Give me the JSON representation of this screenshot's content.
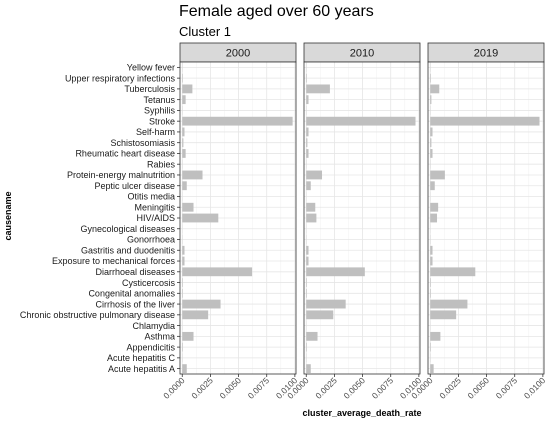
{
  "chart_data": {
    "type": "bar",
    "orientation": "horizontal",
    "title": "Female aged over 60 years",
    "subtitle": "Cluster 1",
    "xlabel": "cluster_average_death_rate",
    "ylabel": "causename",
    "xlim": [
      -0.0002,
      0.0101
    ],
    "xticks": [
      "0.0000",
      "0.0025",
      "0.0050",
      "0.0075",
      "0.0100"
    ],
    "xtick_values": [
      0,
      0.0025,
      0.005,
      0.0075,
      0.01
    ],
    "grid": true,
    "bar_color": "#bfbfbf",
    "categories": [
      "Yellow fever",
      "Upper respiratory infections",
      "Tuberculosis",
      "Tetanus",
      "Syphilis",
      "Stroke",
      "Self-harm",
      "Schistosomiasis",
      "Rheumatic heart disease",
      "Rabies",
      "Protein-energy malnutrition",
      "Peptic ulcer disease",
      "Otitis media",
      "Meningitis",
      "HIV/AIDS",
      "Gynecological diseases",
      "Gonorrhoea",
      "Gastritis and duodenitis",
      "Exposure to mechanical forces",
      "Diarrhoeal diseases",
      "Cysticercosis",
      "Congenital anomalies",
      "Cirrhosis of the liver",
      "Chronic obstructive pulmonary disease",
      "Chlamydia",
      "Asthma",
      "Appendicitis",
      "Acute hepatitis C",
      "Acute hepatitis A"
    ],
    "panels": [
      {
        "name": "2000",
        "values": [
          2e-05,
          5e-05,
          0.0009,
          0.0003,
          2e-05,
          0.0098,
          0.0002,
          0.0001,
          0.0003,
          2e-05,
          0.0018,
          0.0004,
          1e-05,
          0.001,
          0.0032,
          1e-05,
          2e-05,
          0.0002,
          0.0002,
          0.0062,
          5e-05,
          5e-05,
          0.0034,
          0.0023,
          1e-05,
          0.001,
          5e-05,
          2e-05,
          0.0004
        ]
      },
      {
        "name": "2010",
        "values": [
          2e-05,
          5e-05,
          0.0021,
          0.0002,
          2e-05,
          0.0097,
          0.0002,
          0.0001,
          0.0002,
          2e-05,
          0.0014,
          0.0004,
          1e-05,
          0.0008,
          0.0009,
          1e-05,
          2e-05,
          0.0002,
          0.0002,
          0.0052,
          5e-05,
          5e-05,
          0.0035,
          0.0024,
          1e-05,
          0.001,
          5e-05,
          2e-05,
          0.0004
        ]
      },
      {
        "name": "2019",
        "values": [
          2e-05,
          5e-05,
          0.0008,
          0.0001,
          2e-05,
          0.0097,
          0.0002,
          0.0001,
          0.0002,
          2e-05,
          0.0013,
          0.0004,
          1e-05,
          0.0007,
          0.0006,
          1e-05,
          2e-05,
          0.0002,
          0.0002,
          0.004,
          5e-05,
          5e-05,
          0.0033,
          0.0023,
          1e-05,
          0.0009,
          5e-05,
          2e-05,
          0.0003
        ]
      }
    ]
  }
}
